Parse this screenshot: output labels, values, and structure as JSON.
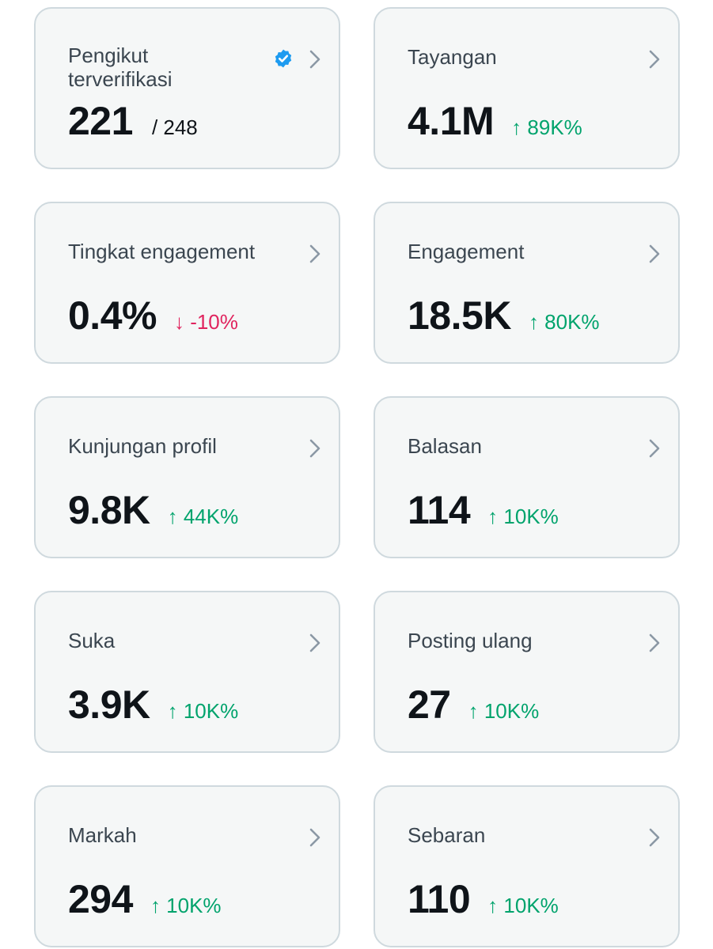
{
  "colors": {
    "card_bg": "#f5f7f7",
    "card_border": "#cfd9de",
    "label": "#3b4650",
    "value": "#0f1419",
    "up": "#00a36c",
    "down": "#e0245e",
    "verified": "#1d9bf0",
    "chevron": "#8b98a5"
  },
  "cards": [
    {
      "label": "Pengikut terverifikasi",
      "value": "221",
      "total": "/ 248",
      "icon": "verified-badge-icon"
    },
    {
      "label": "Tayangan",
      "value": "4.1M",
      "change": "↑ 89K%",
      "trend": "up"
    },
    {
      "label": "Tingkat engagement",
      "value": "0.4%",
      "change": "↓ -10%",
      "trend": "down"
    },
    {
      "label": "Engagement",
      "value": "18.5K",
      "change": "↑ 80K%",
      "trend": "up"
    },
    {
      "label": "Kunjungan profil",
      "value": "9.8K",
      "change": "↑ 44K%",
      "trend": "up"
    },
    {
      "label": "Balasan",
      "value": "114",
      "change": "↑ 10K%",
      "trend": "up"
    },
    {
      "label": "Suka",
      "value": "3.9K",
      "change": "↑ 10K%",
      "trend": "up"
    },
    {
      "label": "Posting ulang",
      "value": "27",
      "change": "↑ 10K%",
      "trend": "up"
    },
    {
      "label": "Markah",
      "value": "294",
      "change": "↑ 10K%",
      "trend": "up"
    },
    {
      "label": "Sebaran",
      "value": "110",
      "change": "↑ 10K%",
      "trend": "up"
    }
  ]
}
